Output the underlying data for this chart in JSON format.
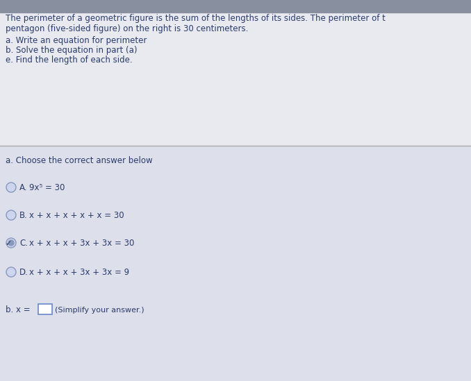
{
  "bg_color_top": "#8890a0",
  "bg_color_upper": "#e8eaf0",
  "bg_color_lower": "#dde0ea",
  "line_color": "#aaaaaa",
  "text_color": "#2a3a6a",
  "title_text1": "The perimeter of a geometric figure is the sum of the lengths of its sides. The perimeter of t",
  "title_text2": "pentagon (five-sided figure) on the right is 30 centimeters.",
  "bullet_a": "a. Write an equation for perimeter",
  "bullet_b": "b. Solve the equation in part (a)",
  "bullet_e": "e. Find the length of each side.",
  "section_a_label": "a. Choose the correct answer below",
  "option_A_text": "9x⁵ = 30",
  "option_B_text": "x + x + x + x + x = 30",
  "option_C_text": "x + x + x + 3x + 3x = 30",
  "option_D_text": "x + x + x + 3x + 3x = 9",
  "answer_label": "b. x =",
  "answer_suffix": "(Simplify your answer.)",
  "checkmark": "✓",
  "radio_color": "#8899bb",
  "radio_fill": "#ccd4ee",
  "answer_box_color": "#6688cc"
}
